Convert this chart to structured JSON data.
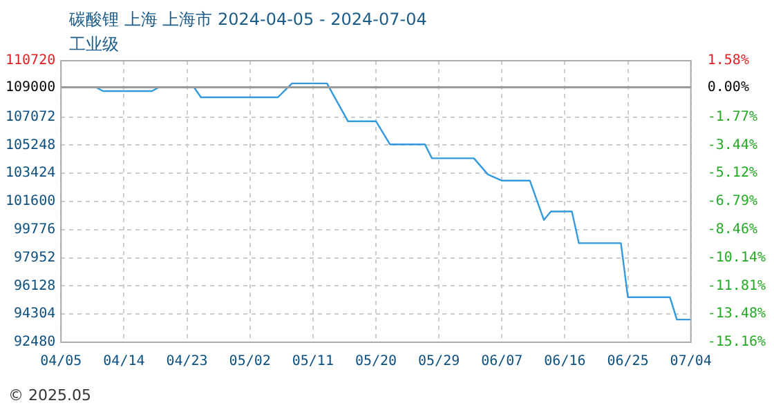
{
  "chart_data": {
    "type": "line",
    "title": "碳酸锂 上海 上海市 2024-04-05 - 2024-07-04",
    "subtitle": "工业级",
    "annotations": [
      "© 2025.05"
    ],
    "x": [
      "2024-04-05",
      "2024-04-10",
      "2024-04-11",
      "2024-04-18",
      "2024-04-19",
      "2024-04-24",
      "2024-04-25",
      "2024-05-06",
      "2024-05-08",
      "2024-05-13",
      "2024-05-16",
      "2024-05-20",
      "2024-05-22",
      "2024-05-27",
      "2024-05-28",
      "2024-06-03",
      "2024-06-05",
      "2024-06-07",
      "2024-06-11",
      "2024-06-13",
      "2024-06-14",
      "2024-06-17",
      "2024-06-18",
      "2024-06-24",
      "2024-06-25",
      "2024-07-01",
      "2024-07-02",
      "2024-07-04"
    ],
    "series": [
      {
        "color": "#3399dd",
        "values": [
          109000,
          109000,
          108750,
          108750,
          109000,
          109000,
          108350,
          108350,
          109250,
          109250,
          106800,
          106800,
          105300,
          105300,
          104400,
          104400,
          103350,
          102950,
          102950,
          100400,
          100950,
          100950,
          98900,
          98900,
          95400,
          95400,
          93950,
          93950
        ]
      }
    ],
    "xlim": [
      "2024-04-05",
      "2024-07-04"
    ],
    "xticks": [
      {
        "value": "2024-04-05",
        "label": "04/05"
      },
      {
        "value": "2024-04-14",
        "label": "04/14"
      },
      {
        "value": "2024-04-23",
        "label": "04/23"
      },
      {
        "value": "2024-05-02",
        "label": "05/02"
      },
      {
        "value": "2024-05-11",
        "label": "05/11"
      },
      {
        "value": "2024-05-20",
        "label": "05/20"
      },
      {
        "value": "2024-05-29",
        "label": "05/29"
      },
      {
        "value": "2024-06-07",
        "label": "06/07"
      },
      {
        "value": "2024-06-16",
        "label": "06/16"
      },
      {
        "value": "2024-06-25",
        "label": "06/25"
      },
      {
        "value": "2024-07-04",
        "label": "07/04"
      }
    ],
    "ylim": [
      92480,
      110720
    ],
    "yticks": [
      92480,
      94304,
      96128,
      97952,
      99776,
      101600,
      103424,
      105248,
      107072,
      109000,
      110720
    ],
    "y2lim": [
      -15.16,
      1.58
    ],
    "y2ticks": [
      {
        "value": -15.16,
        "label": "-15.16%"
      },
      {
        "value": -13.48,
        "label": "-13.48%"
      },
      {
        "value": -11.81,
        "label": "-11.81%"
      },
      {
        "value": -10.14,
        "label": "-10.14%"
      },
      {
        "value": -8.46,
        "label": "-8.46%"
      },
      {
        "value": -6.79,
        "label": "-6.79%"
      },
      {
        "value": -5.12,
        "label": "-5.12%"
      },
      {
        "value": -3.44,
        "label": "-3.44%"
      },
      {
        "value": -1.77,
        "label": "-1.77%"
      },
      {
        "value": 0,
        "label": "0.00%"
      },
      {
        "value": 1.58,
        "label": "1.58%"
      }
    ],
    "ref_lines": [
      {
        "axis": "y",
        "value": 109000,
        "color": "#999999"
      }
    ],
    "grid": true,
    "legend": false,
    "marker": "none",
    "line_style": "solid"
  }
}
